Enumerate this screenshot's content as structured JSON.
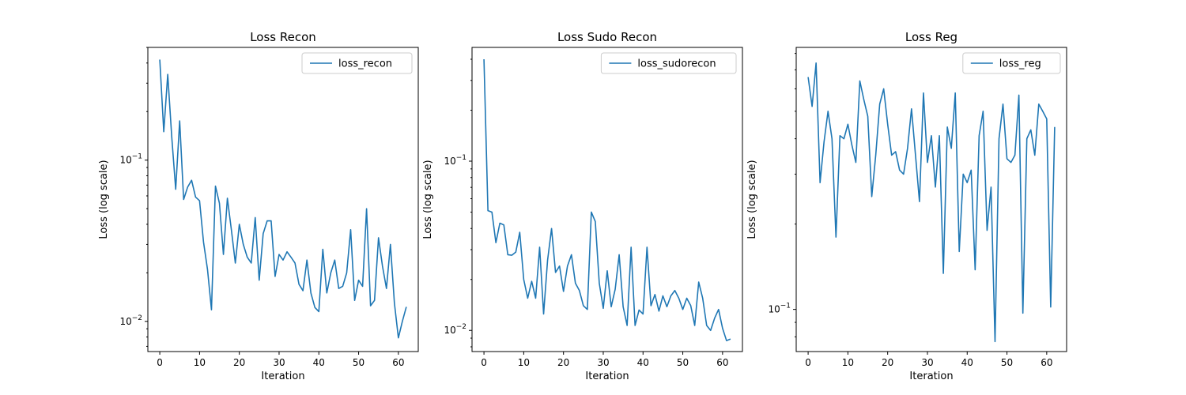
{
  "chart_data": [
    {
      "type": "line",
      "title": "Loss Recon",
      "xlabel": "Iteration",
      "ylabel": "Loss (log scale)",
      "yscale": "log",
      "xlim": [
        -3,
        65
      ],
      "ylim": [
        0.0065,
        0.5
      ],
      "xticks": [
        0,
        10,
        20,
        30,
        40,
        50,
        60
      ],
      "yticks": [
        {
          "value": 0.1,
          "base": "10",
          "exp": "−1"
        },
        {
          "value": 0.01,
          "base": "10",
          "exp": "−2"
        }
      ],
      "legend": "upper right",
      "series": [
        {
          "name": "loss_recon",
          "color": "#1f77b4",
          "x": [
            0,
            1,
            2,
            3,
            4,
            5,
            6,
            7,
            8,
            9,
            10,
            11,
            12,
            13,
            14,
            15,
            16,
            17,
            18,
            19,
            20,
            21,
            22,
            23,
            24,
            25,
            26,
            27,
            28,
            29,
            30,
            31,
            32,
            33,
            34,
            35,
            36,
            37,
            38,
            39,
            40,
            41,
            42,
            43,
            44,
            45,
            46,
            47,
            48,
            49,
            50,
            51,
            52,
            53,
            54,
            55,
            56,
            57,
            58,
            59,
            60,
            61,
            62
          ],
          "values": [
            0.42,
            0.15,
            0.34,
            0.14,
            0.066,
            0.175,
            0.057,
            0.068,
            0.075,
            0.059,
            0.056,
            0.031,
            0.021,
            0.0118,
            0.069,
            0.054,
            0.026,
            0.058,
            0.037,
            0.023,
            0.04,
            0.03,
            0.025,
            0.023,
            0.044,
            0.018,
            0.035,
            0.042,
            0.042,
            0.019,
            0.026,
            0.024,
            0.027,
            0.025,
            0.023,
            0.017,
            0.0155,
            0.024,
            0.015,
            0.0122,
            0.0115,
            0.028,
            0.015,
            0.02,
            0.024,
            0.016,
            0.0165,
            0.02,
            0.037,
            0.0135,
            0.018,
            0.0165,
            0.05,
            0.0125,
            0.0135,
            0.033,
            0.022,
            0.016,
            0.03,
            0.013,
            0.0079,
            0.01,
            0.0123
          ]
        }
      ]
    },
    {
      "type": "line",
      "title": "Loss Sudo Recon",
      "xlabel": "Iteration",
      "ylabel": "Loss (log scale)",
      "yscale": "log",
      "xlim": [
        -3,
        65
      ],
      "ylim": [
        0.0075,
        0.47
      ],
      "xticks": [
        0,
        10,
        20,
        30,
        40,
        50,
        60
      ],
      "yticks": [
        {
          "value": 0.1,
          "base": "10",
          "exp": "−1"
        },
        {
          "value": 0.01,
          "base": "10",
          "exp": "−2"
        }
      ],
      "legend": "upper right",
      "series": [
        {
          "name": "loss_sudorecon",
          "color": "#1f77b4",
          "x": [
            0,
            1,
            2,
            3,
            4,
            5,
            6,
            7,
            8,
            9,
            10,
            11,
            12,
            13,
            14,
            15,
            16,
            17,
            18,
            19,
            20,
            21,
            22,
            23,
            24,
            25,
            26,
            27,
            28,
            29,
            30,
            31,
            32,
            33,
            34,
            35,
            36,
            37,
            38,
            39,
            40,
            41,
            42,
            43,
            44,
            45,
            46,
            47,
            48,
            49,
            50,
            51,
            52,
            53,
            54,
            55,
            56,
            57,
            58,
            59,
            60,
            61,
            62
          ],
          "values": [
            0.4,
            0.051,
            0.05,
            0.033,
            0.043,
            0.042,
            0.028,
            0.0278,
            0.029,
            0.038,
            0.02,
            0.0155,
            0.0195,
            0.0155,
            0.031,
            0.0125,
            0.026,
            0.04,
            0.022,
            0.024,
            0.017,
            0.024,
            0.028,
            0.019,
            0.0172,
            0.014,
            0.0133,
            0.05,
            0.044,
            0.019,
            0.0135,
            0.0225,
            0.0138,
            0.0175,
            0.028,
            0.0138,
            0.0107,
            0.031,
            0.0107,
            0.0132,
            0.0125,
            0.031,
            0.014,
            0.0163,
            0.013,
            0.016,
            0.0138,
            0.016,
            0.0172,
            0.0155,
            0.0133,
            0.0155,
            0.014,
            0.0107,
            0.0193,
            0.0155,
            0.0107,
            0.01,
            0.0118,
            0.0133,
            0.0103,
            0.0087,
            0.0089
          ]
        }
      ]
    },
    {
      "type": "line",
      "title": "Loss Reg",
      "xlabel": "Iteration",
      "ylabel": "Loss (log scale)",
      "yscale": "log",
      "xlim": [
        -3,
        65
      ],
      "ylim": [
        0.071,
        0.84
      ],
      "xticks": [
        0,
        10,
        20,
        30,
        40,
        50,
        60
      ],
      "yticks": [
        {
          "value": 0.1,
          "base": "10",
          "exp": "−1"
        }
      ],
      "legend": "upper right",
      "series": [
        {
          "name": "loss_reg",
          "color": "#1f77b4",
          "x": [
            0,
            1,
            2,
            3,
            4,
            5,
            6,
            7,
            8,
            9,
            10,
            11,
            12,
            13,
            14,
            15,
            16,
            17,
            18,
            19,
            20,
            21,
            22,
            23,
            24,
            25,
            26,
            27,
            28,
            29,
            30,
            31,
            32,
            33,
            34,
            35,
            36,
            37,
            38,
            39,
            40,
            41,
            42,
            43,
            44,
            45,
            46,
            47,
            48,
            49,
            50,
            51,
            52,
            53,
            54,
            55,
            56,
            57,
            58,
            59,
            60,
            61,
            62
          ],
          "values": [
            0.66,
            0.52,
            0.74,
            0.28,
            0.39,
            0.5,
            0.4,
            0.18,
            0.41,
            0.4,
            0.45,
            0.38,
            0.33,
            0.64,
            0.55,
            0.48,
            0.25,
            0.35,
            0.53,
            0.6,
            0.45,
            0.35,
            0.36,
            0.31,
            0.3,
            0.37,
            0.51,
            0.35,
            0.24,
            0.58,
            0.33,
            0.41,
            0.27,
            0.41,
            0.134,
            0.44,
            0.37,
            0.58,
            0.16,
            0.3,
            0.28,
            0.31,
            0.138,
            0.41,
            0.5,
            0.19,
            0.27,
            0.077,
            0.4,
            0.53,
            0.34,
            0.33,
            0.35,
            0.57,
            0.097,
            0.4,
            0.43,
            0.35,
            0.53,
            0.5,
            0.47,
            0.102,
            0.44
          ]
        }
      ]
    }
  ]
}
